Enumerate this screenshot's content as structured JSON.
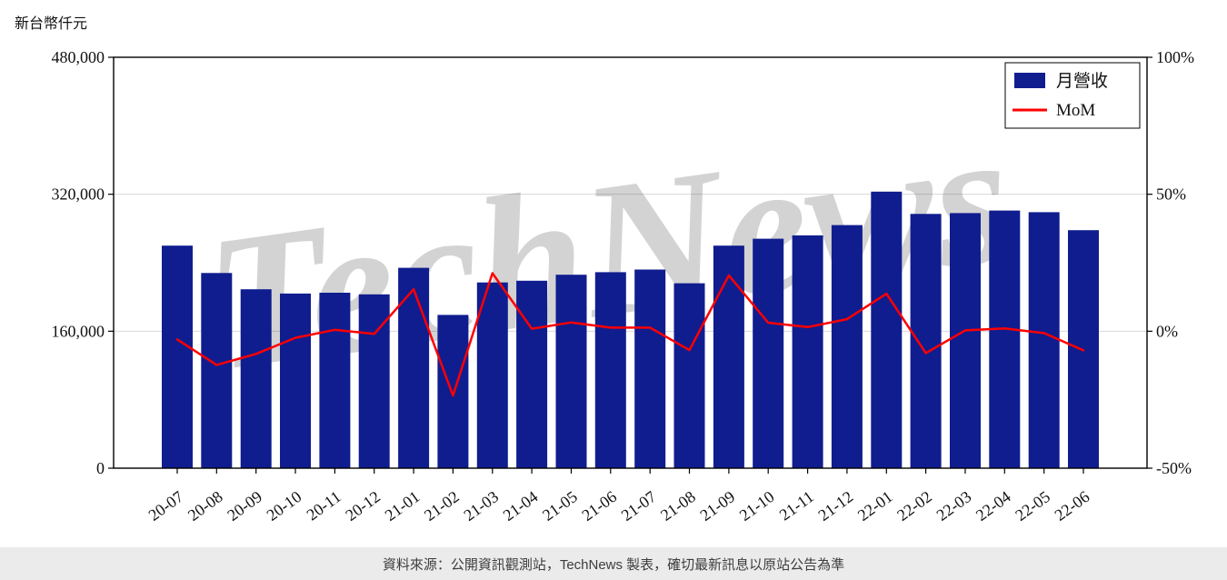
{
  "page": {
    "title": "新台幣仟元",
    "footer": "資料來源：公開資訊觀測站，TechNews 製表，確切最新訊息以原站公告為準",
    "watermark": "TechNews"
  },
  "legend": {
    "bar_label": "月營收",
    "line_label": "MoM"
  },
  "colors": {
    "bar": "#101d8f",
    "line": "#ff0000",
    "grid": "#d8d8d8",
    "axis": "#000000",
    "watermark": "#cc4f4f",
    "footer_bg": "#ebebeb"
  },
  "chart_data": {
    "type": "bar",
    "title": "",
    "categories": [
      "20-07",
      "20-08",
      "20-09",
      "20-10",
      "20-11",
      "20-12",
      "21-01",
      "21-02",
      "21-03",
      "21-04",
      "21-05",
      "21-06",
      "21-07",
      "21-08",
      "21-09",
      "21-10",
      "21-11",
      "21-12",
      "22-01",
      "22-02",
      "22-03",
      "22-04",
      "22-05",
      "22-06"
    ],
    "series": [
      {
        "name": "月營收",
        "type": "bar",
        "axis": "left",
        "values": [
          260000,
          228000,
          209000,
          204000,
          205000,
          203000,
          234000,
          179000,
          217000,
          219000,
          226000,
          229000,
          232000,
          216000,
          260000,
          268000,
          272000,
          284000,
          323000,
          297000,
          298000,
          301000,
          299000,
          278000
        ]
      },
      {
        "name": "MoM",
        "type": "line",
        "axis": "right",
        "values": [
          -3.0,
          -12.3,
          -8.3,
          -2.4,
          0.5,
          -1.0,
          15.3,
          -23.5,
          21.2,
          0.9,
          3.2,
          1.3,
          1.3,
          -6.9,
          20.4,
          3.1,
          1.5,
          4.4,
          13.7,
          -8.0,
          0.3,
          1.0,
          -0.7,
          -7.0
        ]
      }
    ],
    "left_axis": {
      "label": "新台幣仟元",
      "range": [
        0,
        480000
      ],
      "ticks": [
        0,
        160000,
        320000,
        480000
      ],
      "labels": [
        "0",
        "160,000",
        "320,000",
        "480,000"
      ]
    },
    "right_axis": {
      "label": "",
      "range": [
        -50,
        100
      ],
      "ticks": [
        -50,
        0,
        50,
        100
      ],
      "labels": [
        "-50%",
        "0%",
        "50%",
        "100%"
      ]
    },
    "grid": "horizontal",
    "legend_position": "top-right"
  }
}
